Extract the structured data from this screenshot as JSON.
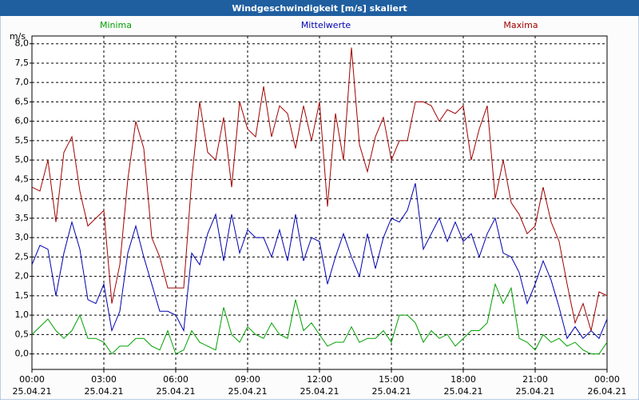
{
  "chart_data": {
    "type": "line",
    "title": "Windgeschwindigkeit [m/s] skaliert",
    "ylabel": "m/s",
    "x": [
      0,
      20,
      40,
      60,
      80,
      100,
      120,
      140,
      160,
      180,
      200,
      220,
      240,
      260,
      280,
      300,
      320,
      340,
      360,
      380,
      400,
      420,
      440,
      460,
      480,
      500,
      520,
      540,
      560,
      580,
      600,
      620,
      640,
      660,
      680,
      700,
      720,
      740,
      760,
      780,
      800,
      820,
      840,
      860,
      880,
      900,
      920,
      940,
      960,
      980,
      1000,
      1020,
      1040,
      1060,
      1080,
      1100,
      1120,
      1140,
      1160,
      1180,
      1200,
      1220,
      1240,
      1260,
      1280,
      1300,
      1320,
      1340,
      1360,
      1380,
      1400,
      1420,
      1440
    ],
    "series": [
      {
        "name": "Minima",
        "color": "#00a000",
        "values": [
          0.5,
          0.7,
          0.9,
          0.6,
          0.4,
          0.6,
          1.0,
          0.4,
          0.4,
          0.3,
          0.0,
          0.2,
          0.2,
          0.4,
          0.4,
          0.2,
          0.1,
          0.6,
          0.0,
          0.1,
          0.6,
          0.3,
          0.2,
          0.1,
          1.2,
          0.5,
          0.3,
          0.7,
          0.5,
          0.4,
          0.8,
          0.5,
          0.4,
          1.4,
          0.6,
          0.8,
          0.5,
          0.2,
          0.3,
          0.3,
          0.7,
          0.3,
          0.4,
          0.4,
          0.6,
          0.3,
          1.0,
          1.0,
          0.8,
          0.3,
          0.6,
          0.4,
          0.5,
          0.2,
          0.4,
          0.6,
          0.6,
          0.8,
          1.8,
          1.3,
          1.7,
          0.4,
          0.3,
          0.1,
          0.5,
          0.3,
          0.4,
          0.2,
          0.3,
          0.1,
          0.0,
          0.0,
          0.3
        ]
      },
      {
        "name": "Mittelwerte",
        "color": "#0000b0",
        "values": [
          2.3,
          2.8,
          2.7,
          1.5,
          2.6,
          3.4,
          2.7,
          1.4,
          1.3,
          1.8,
          0.6,
          1.1,
          2.6,
          3.3,
          2.5,
          1.8,
          1.1,
          1.1,
          1.0,
          0.6,
          2.6,
          2.3,
          3.1,
          3.6,
          2.4,
          3.6,
          2.6,
          3.2,
          3.0,
          3.0,
          2.5,
          3.2,
          2.4,
          3.6,
          2.4,
          3.0,
          2.9,
          1.8,
          2.5,
          3.1,
          2.5,
          2.0,
          3.1,
          2.2,
          3.0,
          3.5,
          3.4,
          3.7,
          4.4,
          2.7,
          3.1,
          3.5,
          2.9,
          3.4,
          2.9,
          3.1,
          2.5,
          3.1,
          3.5,
          2.6,
          2.5,
          2.1,
          1.3,
          1.8,
          2.4,
          1.9,
          1.2,
          0.4,
          0.7,
          0.4,
          0.6,
          0.4,
          0.9
        ]
      },
      {
        "name": "Maxima",
        "color": "#a00000",
        "values": [
          4.3,
          4.2,
          5.0,
          3.4,
          5.2,
          5.6,
          4.2,
          3.3,
          3.5,
          3.7,
          1.3,
          2.3,
          4.5,
          6.0,
          5.3,
          3.0,
          2.5,
          1.7,
          1.7,
          1.7,
          4.5,
          6.5,
          5.2,
          5.0,
          6.1,
          4.3,
          6.5,
          5.8,
          5.6,
          6.9,
          5.6,
          6.4,
          6.2,
          5.3,
          6.4,
          5.5,
          6.5,
          3.8,
          6.2,
          5.0,
          7.9,
          5.4,
          4.7,
          5.6,
          6.1,
          5.0,
          5.5,
          5.5,
          6.5,
          6.5,
          6.4,
          6.0,
          6.3,
          6.2,
          6.4,
          5.0,
          5.8,
          6.4,
          4.0,
          5.0,
          3.9,
          3.6,
          3.1,
          3.3,
          4.3,
          3.4,
          2.9,
          1.8,
          0.8,
          1.3,
          0.6,
          1.6,
          1.5
        ]
      }
    ],
    "xlim": [
      0,
      1440
    ],
    "xticks": [
      {
        "value": 0,
        "label": "00:00",
        "date": "25.04.21"
      },
      {
        "value": 180,
        "label": "03:00",
        "date": "25.04.21"
      },
      {
        "value": 360,
        "label": "06:00",
        "date": "25.04.21"
      },
      {
        "value": 540,
        "label": "09:00",
        "date": "25.04.21"
      },
      {
        "value": 720,
        "label": "12:00",
        "date": "25.04.21"
      },
      {
        "value": 900,
        "label": "15:00",
        "date": "25.04.21"
      },
      {
        "value": 1080,
        "label": "18:00",
        "date": "25.04.21"
      },
      {
        "value": 1260,
        "label": "21:00",
        "date": "25.04.21"
      },
      {
        "value": 1440,
        "label": "00:00",
        "date": "26.04.21"
      }
    ],
    "ylim": [
      -0.4,
      8.2
    ],
    "yticks": [
      {
        "value": 0,
        "label": "0,0"
      },
      {
        "value": 0.5,
        "label": "0,5"
      },
      {
        "value": 1,
        "label": "1,0"
      },
      {
        "value": 1.5,
        "label": "1,5"
      },
      {
        "value": 2,
        "label": "2,0"
      },
      {
        "value": 2.5,
        "label": "2,5"
      },
      {
        "value": 3,
        "label": "3,0"
      },
      {
        "value": 3.5,
        "label": "3,5"
      },
      {
        "value": 4,
        "label": "4,0"
      },
      {
        "value": 4.5,
        "label": "4,5"
      },
      {
        "value": 5,
        "label": "5,0"
      },
      {
        "value": 5.5,
        "label": "5,5"
      },
      {
        "value": 6,
        "label": "6,0"
      },
      {
        "value": 6.5,
        "label": "6,5"
      },
      {
        "value": 7,
        "label": "7,0"
      },
      {
        "value": 7.5,
        "label": "7,5"
      },
      {
        "value": 8,
        "label": "8,0"
      }
    ],
    "grid": true
  }
}
